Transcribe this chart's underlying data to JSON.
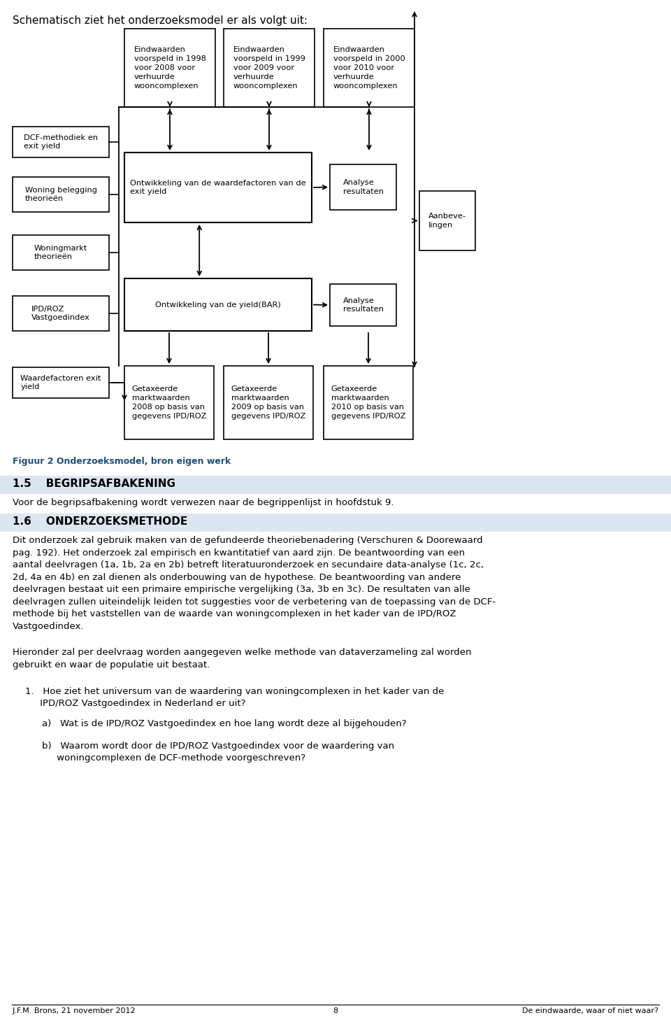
{
  "title_text": "Schematisch ziet het onderzoeksmodel er als volgt uit:",
  "fig_caption": "Figuur 2 Onderzoeksmodel, bron eigen werk",
  "section_15_title": "1.5    BEGRIPSAFBAKENING",
  "section_15_body": "Voor de begripsafbakening wordt verwezen naar de begrippenlijst in hoofdstuk 9.",
  "section_16_title": "1.6    ONDERZOEKSMETHODE",
  "section_16_body": "Dit onderzoek zal gebruik maken van de gefundeerde theoriebenadering (Verschuren & Doorewaard\npag. 192). Het onderzoek zal empirisch en kwantitatief van aard zijn. De beantwoording van een\naantal deelvragen (1a, 1b, 2a en 2b) betreft literatuuronderzoek en secundaire data-analyse (1c, 2c,\n2d, 4a en 4b) en zal dienen als onderbouwing van de hypothese. De beantwoording van andere\ndeelvragen bestaat uit een primaire empirische vergelijking (3a, 3b en 3c). De resultaten van alle\ndeelvragen zullen uiteindelijk leiden tot suggesties voor de verbetering van de toepassing van de DCF-\nmethode bij het vaststellen van de waarde van woningcomplexen in het kader van de IPD/ROZ\nVastgoedindex.",
  "section_16_body2": "Hieronder zal per deelvraag worden aangegeven welke methode van dataverzameling zal worden\ngebruikt en waar de populatie uit bestaat.",
  "list_item1": "1.   Hoe ziet het universum van de waardering van woningcomplexen in het kader van de\n     IPD/ROZ Vastgoedindex in Nederland er uit?",
  "list_item1a": "a)   Wat is de IPD/ROZ Vastgoedindex en hoe lang wordt deze al bijgehouden?",
  "list_item1b": "b)   Waarom wordt door de IPD/ROZ Vastgoedindex voor de waardering van\n     woningcomplexen de DCF-methode voorgeschreven?",
  "footer_left": "J.F.M. Brons, 21 november 2012",
  "footer_center": "8",
  "footer_right": "De eindwaarde, waar of niet waar?",
  "bg_color": "#ffffff",
  "section_header_bg": "#dce6f1",
  "caption_color": "#1f4e79",
  "boxes": {
    "top1": {
      "label": "Eindwaarden\nvoorspeld in 1998\nvoor 2008 voor\nverhuurde\nwooncomplexen"
    },
    "top2": {
      "label": "Eindwaarden\nvoorspeld in 1999\nvoor 2009 voor\nverhuurde\nwooncomplexen"
    },
    "top3": {
      "label": "Eindwaarden\nvoorspeld in 2000\nvoor 2010 voor\nverhuurde\nwooncomplexen"
    },
    "left1": {
      "label": "DCF-methodiek en\nexit yield"
    },
    "left2": {
      "label": "Woning belegging\ntheorieën"
    },
    "left3": {
      "label": "Woningmarkt\ntheorieën"
    },
    "left4": {
      "label": "IPD/ROZ\nVastgoedindex"
    },
    "left5": {
      "label": "Waardefactoren exit\nyield"
    },
    "mid1": {
      "label": "Ontwikkeling van de waardefactoren van de\nexit yield"
    },
    "mid2": {
      "label": "Ontwikkeling van de yield(BAR)"
    },
    "right1": {
      "label": "Analyse\nresultaten"
    },
    "right2": {
      "label": "Analyse\nresultaten"
    },
    "far_right": {
      "label": "Aanbeve-\nlingen"
    },
    "bot1": {
      "label": "Getaxeerde\nmarktwaarden\n2008 op basis van\ngegevens IPD/ROZ"
    },
    "bot2": {
      "label": "Getaxeerde\nmarktwaarden\n2009 op basis van\ngegevens IPD/ROZ"
    },
    "bot3": {
      "label": "Getaxeerde\nmarktwaarden\n2010 op basis van\ngegevens IPD/ROZ"
    }
  }
}
